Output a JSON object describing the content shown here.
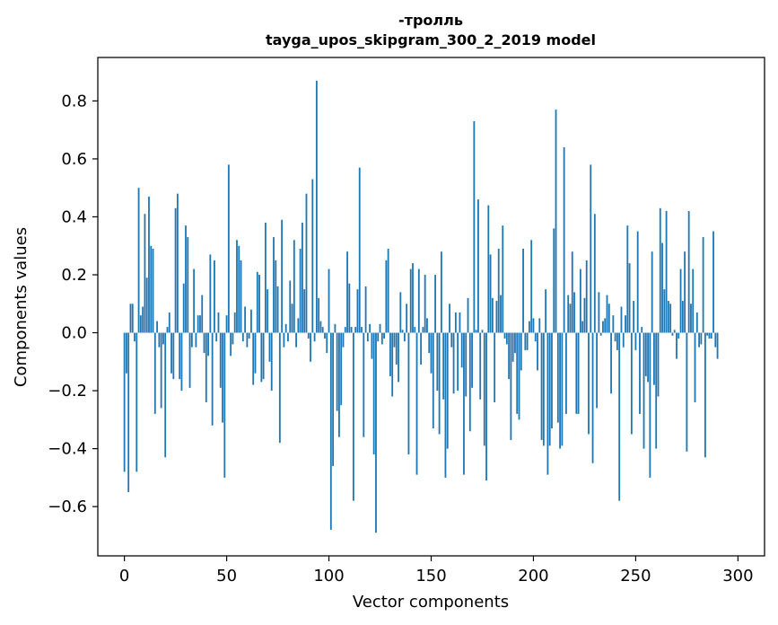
{
  "chart_data": {
    "type": "bar",
    "title": "-тролль",
    "subtitle": "tayga_upos_skipgram_300_2_2019 model",
    "xlabel": "Vector components",
    "ylabel": "Components values",
    "xlim": [
      -13,
      313
    ],
    "ylim": [
      -0.77,
      0.95
    ],
    "xticks": [
      0,
      50,
      100,
      150,
      200,
      250,
      300
    ],
    "yticks": [
      -0.6,
      -0.4,
      -0.2,
      0.0,
      0.2,
      0.4,
      0.6,
      0.8
    ],
    "xtick_labels": [
      "0",
      "50",
      "100",
      "150",
      "200",
      "250",
      "300"
    ],
    "ytick_labels": [
      "−0.6",
      "−0.4",
      "−0.2",
      "0.0",
      "0.2",
      "0.4",
      "0.6",
      "0.8"
    ],
    "bar_color": "#1f77b4",
    "values": [
      -0.48,
      -0.14,
      -0.55,
      0.1,
      0.1,
      -0.03,
      -0.48,
      0.5,
      0.06,
      0.09,
      0.41,
      0.19,
      0.47,
      0.3,
      0.29,
      -0.28,
      0.04,
      -0.05,
      -0.26,
      -0.04,
      -0.43,
      0.02,
      0.07,
      -0.14,
      -0.16,
      0.43,
      0.48,
      -0.16,
      -0.2,
      0.17,
      0.37,
      0.33,
      -0.19,
      -0.05,
      0.22,
      -0.05,
      0.06,
      0.06,
      0.13,
      -0.07,
      -0.24,
      -0.08,
      0.27,
      -0.32,
      0.25,
      -0.03,
      0.07,
      -0.19,
      -0.31,
      -0.5,
      0.06,
      0.58,
      -0.08,
      -0.04,
      0.07,
      0.32,
      0.3,
      0.25,
      -0.03,
      0.09,
      -0.05,
      -0.02,
      0.08,
      -0.18,
      -0.14,
      0.21,
      0.2,
      -0.17,
      -0.16,
      0.38,
      0.15,
      -0.1,
      -0.2,
      0.33,
      0.25,
      0.16,
      -0.38,
      0.39,
      -0.05,
      0.03,
      -0.03,
      0.18,
      0.1,
      0.32,
      -0.05,
      0.05,
      0.29,
      0.38,
      0.15,
      0.48,
      -0.02,
      -0.1,
      0.53,
      -0.03,
      0.87,
      0.12,
      0.04,
      0.02,
      -0.02,
      -0.07,
      0.22,
      -0.68,
      -0.46,
      0.03,
      -0.27,
      -0.36,
      -0.25,
      -0.05,
      0.02,
      0.28,
      0.17,
      0.02,
      -0.58,
      0.02,
      0.15,
      0.57,
      0.02,
      -0.36,
      0.16,
      -0.03,
      0.03,
      -0.09,
      -0.42,
      -0.69,
      -0.03,
      0.03,
      -0.04,
      -0.02,
      0.25,
      0.29,
      -0.15,
      -0.22,
      -0.05,
      -0.11,
      -0.17,
      0.14,
      0.01,
      -0.03,
      0.1,
      -0.42,
      0.22,
      0.24,
      0.02,
      -0.49,
      0.22,
      -0.11,
      0.02,
      0.2,
      0.05,
      -0.07,
      -0.14,
      -0.33,
      0.2,
      -0.2,
      -0.35,
      0.28,
      -0.23,
      -0.5,
      -0.4,
      0.1,
      -0.05,
      -0.21,
      0.07,
      -0.2,
      0.07,
      -0.12,
      -0.49,
      -0.22,
      0.12,
      -0.34,
      -0.19,
      0.73,
      0.01,
      0.46,
      -0.23,
      0.01,
      -0.39,
      -0.51,
      0.44,
      0.27,
      0.12,
      -0.24,
      0.11,
      0.29,
      0.13,
      0.37,
      -0.02,
      -0.04,
      -0.16,
      -0.37,
      -0.1,
      -0.07,
      -0.28,
      -0.3,
      -0.13,
      0.29,
      -0.06,
      -0.06,
      0.04,
      0.32,
      0.05,
      -0.03,
      -0.13,
      0.05,
      -0.37,
      -0.39,
      0.15,
      -0.49,
      -0.39,
      -0.33,
      0.36,
      0.77,
      -0.31,
      -0.4,
      -0.39,
      0.64,
      -0.28,
      0.13,
      0.1,
      0.28,
      0.14,
      -0.28,
      -0.28,
      0.22,
      0.04,
      0.12,
      0.25,
      -0.35,
      0.58,
      -0.45,
      0.41,
      -0.26,
      0.14,
      -0.01,
      0.04,
      0.05,
      0.13,
      0.1,
      -0.21,
      0.06,
      -0.03,
      -0.06,
      -0.58,
      0.09,
      -0.05,
      0.06,
      0.37,
      0.24,
      -0.35,
      0.11,
      -0.06,
      0.35,
      -0.28,
      0.02,
      -0.4,
      -0.15,
      -0.17,
      -0.5,
      0.28,
      -0.18,
      -0.4,
      -0.22,
      0.43,
      0.31,
      0.15,
      0.42,
      0.11,
      0.1,
      -0.01,
      0.01,
      -0.09,
      -0.02,
      0.22,
      0.11,
      0.28,
      -0.41,
      0.42,
      0.1,
      0.22,
      -0.24,
      0.07,
      -0.05,
      -0.04,
      0.33,
      -0.43,
      -0.01,
      -0.02,
      -0.02,
      0.35,
      -0.05,
      -0.09
    ]
  }
}
